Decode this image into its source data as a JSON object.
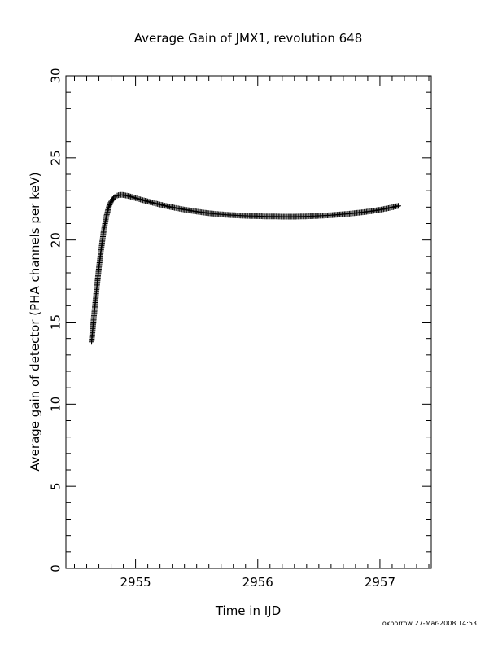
{
  "chart_data": {
    "type": "scatter",
    "title": "Average Gain of JMX1, revolution 648",
    "xlabel": "Time in IJD",
    "ylabel": "Average gain of detector (PHA channels per keV)",
    "xlim": [
      2954.43,
      2957.42
    ],
    "ylim": [
      0,
      30
    ],
    "x_ticks": [
      "2955",
      "2956",
      "2957"
    ],
    "y_ticks": [
      "0",
      "5",
      "10",
      "15",
      "20",
      "25",
      "30"
    ],
    "marker": "+",
    "grid": false,
    "legend": "none",
    "series": [
      {
        "x": [
          2954.64,
          2954.66,
          2954.68,
          2954.7,
          2954.72,
          2954.74,
          2954.76,
          2954.78,
          2954.8,
          2954.82,
          2954.84,
          2954.86,
          2954.88,
          2954.9,
          2954.92,
          2954.94,
          2954.96,
          2954.98,
          2955.0,
          2955.05,
          2955.1,
          2955.15,
          2955.2,
          2955.25,
          2955.3,
          2955.35,
          2955.4,
          2955.45,
          2955.5,
          2955.55,
          2955.6,
          2955.65,
          2955.7,
          2955.75,
          2955.8,
          2955.85,
          2955.9,
          2955.95,
          2956.0,
          2956.05,
          2956.1,
          2956.15,
          2956.2,
          2956.25,
          2956.3,
          2956.35,
          2956.4,
          2956.45,
          2956.5,
          2956.55,
          2956.6,
          2956.65,
          2956.7,
          2956.75,
          2956.8,
          2956.85,
          2956.9,
          2956.95,
          2957.0,
          2957.05,
          2957.1,
          2957.15
        ],
        "y": [
          13.8,
          15.4,
          16.9,
          18.3,
          19.5,
          20.6,
          21.4,
          22.0,
          22.35,
          22.55,
          22.68,
          22.73,
          22.75,
          22.74,
          22.71,
          22.68,
          22.64,
          22.6,
          22.55,
          22.45,
          22.35,
          22.25,
          22.16,
          22.07,
          21.99,
          21.92,
          21.85,
          21.79,
          21.73,
          21.68,
          21.63,
          21.59,
          21.56,
          21.53,
          21.51,
          21.49,
          21.47,
          21.46,
          21.45,
          21.44,
          21.43,
          21.43,
          21.42,
          21.42,
          21.42,
          21.43,
          21.44,
          21.45,
          21.47,
          21.49,
          21.51,
          21.54,
          21.57,
          21.6,
          21.64,
          21.68,
          21.73,
          21.78,
          21.84,
          21.91,
          21.99,
          22.08
        ]
      }
    ]
  },
  "footer": {
    "stamp": "oxborrow 27-Mar-2008 14:53"
  }
}
